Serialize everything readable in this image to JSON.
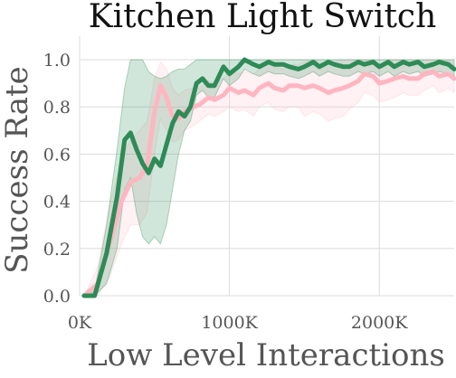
{
  "chart_data": {
    "type": "line",
    "title": "Kitchen Light Switch",
    "xlabel": "Low Level Interactions",
    "ylabel": "Success Rate",
    "xlim": [
      0,
      2500000
    ],
    "ylim": [
      0.0,
      1.05
    ],
    "x_ticks": [
      0,
      1000000,
      2000000
    ],
    "x_tick_labels": [
      "0K",
      "1000K",
      "2000K"
    ],
    "y_ticks": [
      0.0,
      0.2,
      0.4,
      0.6,
      0.8,
      1.0
    ],
    "y_tick_labels": [
      "0.0",
      "0.2",
      "0.4",
      "0.6",
      "0.8",
      "1.0"
    ],
    "grid": true,
    "series": [
      {
        "color": "#2e8b57",
        "band_color": "#2e8b57",
        "x": [
          30000,
          100000,
          180000,
          250000,
          300000,
          340000,
          380000,
          420000,
          460000,
          500000,
          540000,
          580000,
          620000,
          660000,
          700000,
          740000,
          780000,
          820000,
          860000,
          900000,
          960000,
          1000000,
          1060000,
          1100000,
          1160000,
          1200000,
          1260000,
          1300000,
          1360000,
          1400000,
          1460000,
          1500000,
          1560000,
          1600000,
          1660000,
          1700000,
          1760000,
          1800000,
          1860000,
          1900000,
          1960000,
          2000000,
          2060000,
          2100000,
          2160000,
          2200000,
          2260000,
          2300000,
          2360000,
          2400000,
          2460000,
          2500000
        ],
        "values": [
          0.0,
          0.0,
          0.18,
          0.42,
          0.66,
          0.69,
          0.62,
          0.56,
          0.52,
          0.58,
          0.55,
          0.64,
          0.73,
          0.78,
          0.76,
          0.8,
          0.9,
          0.92,
          0.89,
          0.89,
          0.97,
          0.94,
          0.97,
          1.0,
          0.98,
          0.97,
          0.99,
          0.98,
          0.98,
          0.97,
          0.96,
          0.97,
          0.99,
          0.97,
          0.99,
          0.98,
          0.97,
          0.97,
          0.99,
          0.98,
          0.99,
          0.97,
          0.99,
          0.97,
          0.99,
          0.98,
          0.99,
          0.97,
          0.98,
          0.99,
          0.98,
          0.96
        ],
        "lower": [
          0.0,
          0.0,
          0.05,
          0.2,
          0.45,
          0.5,
          0.35,
          0.25,
          0.22,
          0.25,
          0.22,
          0.3,
          0.45,
          0.6,
          0.7,
          0.74,
          0.85,
          0.87,
          0.84,
          0.84,
          0.92,
          0.89,
          0.92,
          0.96,
          0.94,
          0.93,
          0.95,
          0.94,
          0.94,
          0.93,
          0.92,
          0.93,
          0.95,
          0.93,
          0.95,
          0.94,
          0.93,
          0.93,
          0.95,
          0.94,
          0.95,
          0.93,
          0.95,
          0.93,
          0.95,
          0.94,
          0.95,
          0.93,
          0.94,
          0.95,
          0.94,
          0.92
        ],
        "upper": [
          0.0,
          0.02,
          0.3,
          0.62,
          0.88,
          1.0,
          1.0,
          1.0,
          0.95,
          0.93,
          0.92,
          0.93,
          0.95,
          0.96,
          0.96,
          0.98,
          1.0,
          1.0,
          1.0,
          1.0,
          1.0,
          1.0,
          1.0,
          1.0,
          1.0,
          1.0,
          1.0,
          1.0,
          1.0,
          1.0,
          1.0,
          1.0,
          1.0,
          1.0,
          1.0,
          1.0,
          1.0,
          1.0,
          1.0,
          1.0,
          1.0,
          1.0,
          1.0,
          1.0,
          1.0,
          1.0,
          1.0,
          1.0,
          1.0,
          1.0,
          1.0,
          1.0
        ]
      },
      {
        "color": "#ffb6c1",
        "band_color": "#ffc0cb",
        "x": [
          30000,
          120000,
          200000,
          280000,
          340000,
          400000,
          450000,
          500000,
          540000,
          580000,
          620000,
          660000,
          700000,
          760000,
          800000,
          860000,
          900000,
          960000,
          1000000,
          1060000,
          1100000,
          1160000,
          1200000,
          1260000,
          1300000,
          1360000,
          1400000,
          1460000,
          1500000,
          1560000,
          1600000,
          1660000,
          1700000,
          1760000,
          1800000,
          1860000,
          1900000,
          1960000,
          2000000,
          2060000,
          2100000,
          2160000,
          2200000,
          2260000,
          2300000,
          2360000,
          2400000,
          2460000,
          2500000
        ],
        "values": [
          0.0,
          0.05,
          0.22,
          0.4,
          0.48,
          0.5,
          0.55,
          0.78,
          0.89,
          0.84,
          0.76,
          0.75,
          0.78,
          0.8,
          0.81,
          0.84,
          0.83,
          0.85,
          0.88,
          0.86,
          0.87,
          0.85,
          0.88,
          0.9,
          0.88,
          0.87,
          0.89,
          0.89,
          0.88,
          0.89,
          0.88,
          0.86,
          0.87,
          0.88,
          0.89,
          0.91,
          0.94,
          0.93,
          0.9,
          0.91,
          0.92,
          0.93,
          0.92,
          0.92,
          0.94,
          0.95,
          0.93,
          0.94,
          0.92
        ],
        "lower": [
          0.0,
          0.0,
          0.08,
          0.22,
          0.3,
          0.3,
          0.35,
          0.6,
          0.75,
          0.7,
          0.65,
          0.66,
          0.7,
          0.72,
          0.74,
          0.77,
          0.76,
          0.78,
          0.8,
          0.78,
          0.79,
          0.76,
          0.8,
          0.82,
          0.79,
          0.78,
          0.8,
          0.8,
          0.76,
          0.78,
          0.77,
          0.74,
          0.75,
          0.76,
          0.79,
          0.82,
          0.86,
          0.85,
          0.82,
          0.83,
          0.84,
          0.86,
          0.85,
          0.85,
          0.87,
          0.89,
          0.86,
          0.88,
          0.86
        ],
        "upper": [
          0.0,
          0.12,
          0.38,
          0.58,
          0.66,
          0.7,
          0.74,
          0.92,
          0.99,
          0.96,
          0.88,
          0.85,
          0.87,
          0.88,
          0.88,
          0.91,
          0.9,
          0.92,
          0.95,
          0.94,
          0.95,
          0.94,
          0.96,
          0.98,
          0.97,
          0.96,
          0.98,
          0.98,
          0.99,
          1.0,
          0.99,
          0.98,
          0.99,
          1.0,
          1.0,
          1.0,
          1.0,
          1.0,
          0.98,
          0.99,
          1.0,
          1.0,
          0.99,
          0.99,
          1.0,
          1.0,
          1.0,
          1.0,
          0.98
        ]
      }
    ]
  }
}
